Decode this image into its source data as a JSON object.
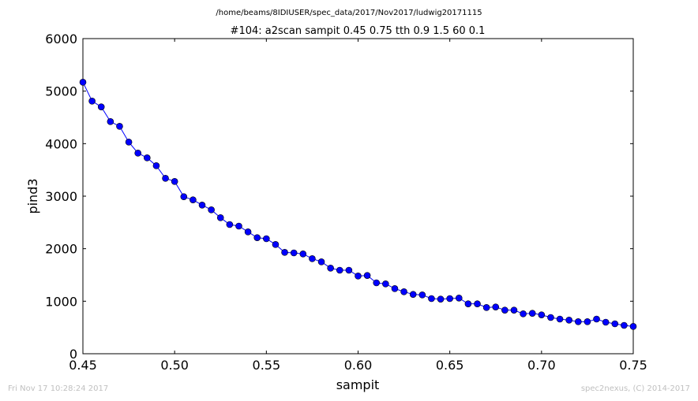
{
  "chart_data": {
    "type": "line",
    "title": "#104: a2scan  sampit 0.45 0.75  tth 0.9 1.5  60 0.1",
    "subtitle": "/home/beams/8IDIUSER/spec_data/2017/Nov2017/ludwig20171115",
    "xlabel": "sampit",
    "ylabel": "pind3",
    "xlim": [
      0.45,
      0.75
    ],
    "ylim": [
      0,
      6000
    ],
    "grid": false,
    "legend": "none",
    "x_ticks": [
      0.45,
      0.5,
      0.55,
      0.6,
      0.65,
      0.7,
      0.75
    ],
    "x_tick_labels": [
      "0.45",
      "0.50",
      "0.55",
      "0.60",
      "0.65",
      "0.70",
      "0.75"
    ],
    "y_ticks": [
      0,
      1000,
      2000,
      3000,
      4000,
      5000,
      6000
    ],
    "y_tick_labels": [
      "0",
      "1000",
      "2000",
      "3000",
      "4000",
      "5000",
      "6000"
    ],
    "series": [
      {
        "color": "#0000ff",
        "marker": "circle",
        "x": [
          0.45,
          0.455,
          0.46,
          0.465,
          0.47,
          0.475,
          0.48,
          0.485,
          0.49,
          0.495,
          0.5,
          0.505,
          0.51,
          0.515,
          0.52,
          0.525,
          0.53,
          0.535,
          0.54,
          0.545,
          0.55,
          0.555,
          0.56,
          0.565,
          0.57,
          0.575,
          0.58,
          0.585,
          0.59,
          0.595,
          0.6,
          0.605,
          0.61,
          0.615,
          0.62,
          0.625,
          0.63,
          0.635,
          0.64,
          0.645,
          0.65,
          0.655,
          0.66,
          0.665,
          0.67,
          0.675,
          0.68,
          0.685,
          0.69,
          0.695,
          0.7,
          0.705,
          0.71,
          0.715,
          0.72,
          0.725,
          0.73,
          0.735,
          0.74,
          0.745,
          0.75
        ],
        "y": [
          5170,
          4810,
          4700,
          4420,
          4330,
          4030,
          3820,
          3730,
          3580,
          3340,
          3280,
          2990,
          2930,
          2830,
          2740,
          2590,
          2460,
          2430,
          2320,
          2210,
          2190,
          2080,
          1930,
          1920,
          1900,
          1810,
          1750,
          1630,
          1590,
          1590,
          1480,
          1490,
          1350,
          1330,
          1240,
          1180,
          1130,
          1120,
          1050,
          1040,
          1050,
          1060,
          950,
          950,
          880,
          890,
          830,
          830,
          760,
          770,
          740,
          690,
          660,
          640,
          610,
          610,
          660,
          600,
          570,
          540,
          520
        ]
      }
    ]
  },
  "footer": {
    "timestamp": "Fri Nov 17 10:28:24 2017",
    "credit": "spec2nexus, (C) 2014-2017"
  }
}
